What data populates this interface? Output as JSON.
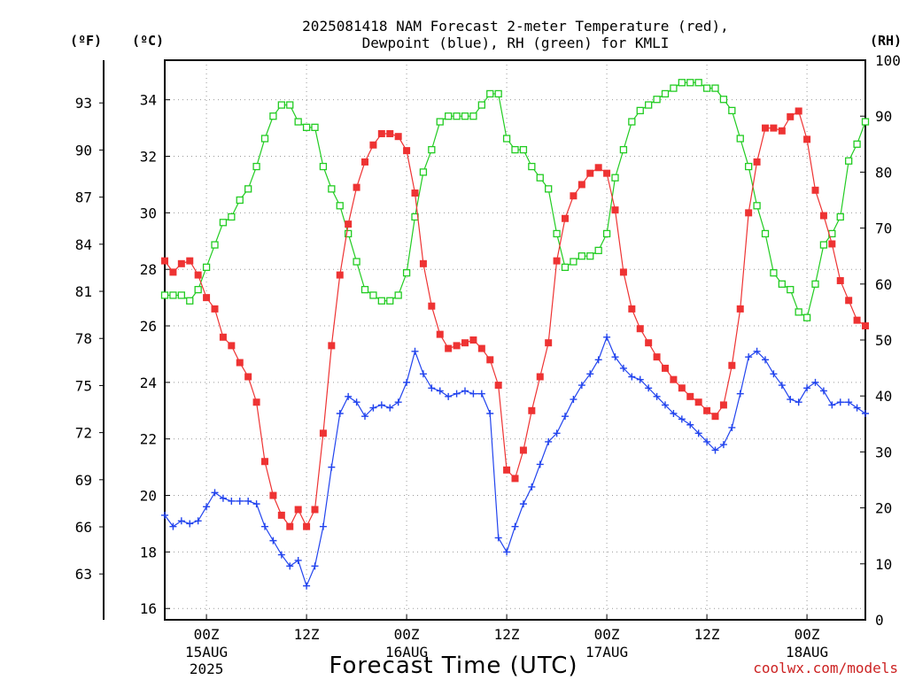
{
  "chart_data": {
    "type": "line",
    "title_line1": "2025081418 NAM Forecast 2-meter Temperature (red),",
    "title_line2": "Dewpoint (blue), RH (green) for KMLI",
    "xlabel": "Forecast Time (UTC)",
    "credit": "coolwx.com/models",
    "units": {
      "fahrenheit": "(ºF)",
      "celsius": "(ºC)",
      "rh": "(RH)"
    },
    "x_start": "2025-08-14 19Z",
    "x_step_hours": 1,
    "ylim_c": [
      15.6,
      35.4
    ],
    "ylim_rh": [
      0,
      100
    ],
    "yticks_c": [
      "16",
      "18",
      "20",
      "22",
      "24",
      "26",
      "28",
      "30",
      "32",
      "34"
    ],
    "yticks_f": [
      "63",
      "66",
      "69",
      "72",
      "75",
      "78",
      "81",
      "84",
      "87",
      "90",
      "93"
    ],
    "yticks_rh": [
      "0",
      "10",
      "20",
      "30",
      "40",
      "50",
      "60",
      "70",
      "80",
      "90",
      "100"
    ],
    "xticks": [
      {
        "hour": 5,
        "label1": "00Z",
        "label2": "15AUG",
        "label3": "2025"
      },
      {
        "hour": 17,
        "label1": "12Z",
        "label2": "",
        "label3": ""
      },
      {
        "hour": 29,
        "label1": "00Z",
        "label2": "16AUG",
        "label3": ""
      },
      {
        "hour": 41,
        "label1": "12Z",
        "label2": "",
        "label3": ""
      },
      {
        "hour": 53,
        "label1": "00Z",
        "label2": "17AUG",
        "label3": ""
      },
      {
        "hour": 65,
        "label1": "12Z",
        "label2": "",
        "label3": ""
      },
      {
        "hour": 77,
        "label1": "00Z",
        "label2": "18AUG",
        "label3": ""
      }
    ],
    "colors": {
      "temperature": "#ee3333",
      "dewpoint": "#2244ee",
      "rh": "#22cc22"
    },
    "series": [
      {
        "name": "Temperature",
        "unit": "C",
        "values": [
          28.3,
          27.9,
          28.2,
          28.3,
          27.8,
          27.0,
          26.6,
          25.6,
          25.3,
          24.7,
          24.2,
          23.3,
          21.2,
          20.0,
          19.3,
          18.9,
          19.5,
          18.9,
          19.5,
          22.2,
          25.3,
          27.8,
          29.6,
          30.9,
          31.8,
          32.4,
          32.8,
          32.8,
          32.7,
          32.2,
          30.7,
          28.2,
          26.7,
          25.7,
          25.2,
          25.3,
          25.4,
          25.5,
          25.2,
          24.8,
          23.9,
          20.9,
          20.6,
          21.6,
          23.0,
          24.2,
          25.4,
          28.3,
          29.8,
          30.6,
          31.0,
          31.4,
          31.6,
          31.4,
          30.1,
          27.9,
          26.6,
          25.9,
          25.4,
          24.9,
          24.5,
          24.1,
          23.8,
          23.5,
          23.3,
          23.0,
          22.8,
          23.2,
          24.6,
          26.6,
          30.0,
          31.8,
          33.0,
          33.0,
          32.9,
          33.4,
          33.6,
          32.6,
          30.8,
          29.9,
          28.9,
          27.6,
          26.9,
          26.2,
          26.0
        ]
      },
      {
        "name": "Dewpoint",
        "unit": "C",
        "values": [
          19.3,
          18.9,
          19.1,
          19.0,
          19.1,
          19.6,
          20.1,
          19.9,
          19.8,
          19.8,
          19.8,
          19.7,
          18.9,
          18.4,
          17.9,
          17.5,
          17.7,
          16.8,
          17.5,
          18.9,
          21.0,
          22.9,
          23.5,
          23.3,
          22.8,
          23.1,
          23.2,
          23.1,
          23.3,
          24.0,
          25.1,
          24.3,
          23.8,
          23.7,
          23.5,
          23.6,
          23.7,
          23.6,
          23.6,
          22.9,
          18.5,
          18.0,
          18.9,
          19.7,
          20.3,
          21.1,
          21.9,
          22.2,
          22.8,
          23.4,
          23.9,
          24.3,
          24.8,
          25.6,
          24.9,
          24.5,
          24.2,
          24.1,
          23.8,
          23.5,
          23.2,
          22.9,
          22.7,
          22.5,
          22.2,
          21.9,
          21.6,
          21.8,
          22.4,
          23.6,
          24.9,
          25.1,
          24.8,
          24.3,
          23.9,
          23.4,
          23.3,
          23.8,
          24.0,
          23.7,
          23.2,
          23.3,
          23.3,
          23.1,
          22.9
        ]
      },
      {
        "name": "RH",
        "unit": "%",
        "values": [
          58,
          58,
          58,
          57,
          59,
          63,
          67,
          71,
          72,
          75,
          77,
          81,
          86,
          90,
          92,
          92,
          89,
          88,
          88,
          81,
          77,
          74,
          69,
          64,
          59,
          58,
          57,
          57,
          58,
          62,
          72,
          80,
          84,
          89,
          90,
          90,
          90,
          90,
          92,
          94,
          94,
          86,
          84,
          84,
          81,
          79,
          77,
          69,
          63,
          64,
          65,
          65,
          66,
          69,
          79,
          84,
          89,
          91,
          92,
          93,
          94,
          95,
          96,
          96,
          96,
          95,
          95,
          93,
          91,
          86,
          81,
          74,
          69,
          62,
          60,
          59,
          55,
          54,
          60,
          67,
          69,
          72,
          82,
          85,
          89
        ]
      }
    ]
  }
}
